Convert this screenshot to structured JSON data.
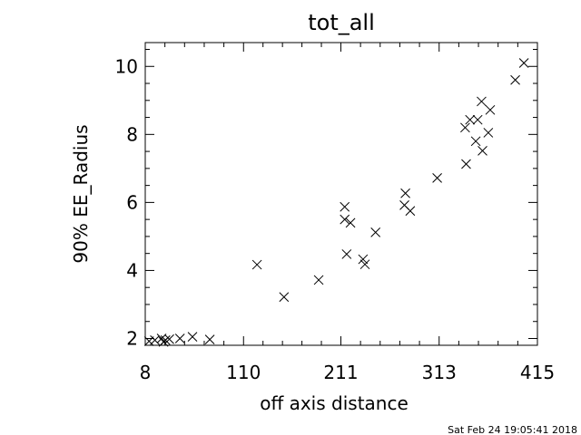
{
  "chart_data": {
    "type": "scatter",
    "title": "tot_all",
    "xlabel": "off axis distance",
    "ylabel": "90% EE_Radius",
    "xlim": [
      8,
      415
    ],
    "ylim": [
      1.8,
      10.7
    ],
    "xticks": [
      8,
      110,
      211,
      313,
      415
    ],
    "xtick_labels": [
      "8",
      "110",
      "211",
      "313",
      "415"
    ],
    "yticks": [
      2,
      4,
      6,
      8,
      10
    ],
    "ytick_labels": [
      "2",
      "4",
      "6",
      "8",
      "10"
    ],
    "marker": "x",
    "grid": false,
    "points": [
      {
        "x": 12,
        "y": 1.92
      },
      {
        "x": 18,
        "y": 1.95
      },
      {
        "x": 25,
        "y": 2.0
      },
      {
        "x": 27,
        "y": 1.9
      },
      {
        "x": 29,
        "y": 1.95
      },
      {
        "x": 33,
        "y": 1.98
      },
      {
        "x": 44,
        "y": 2.0
      },
      {
        "x": 57,
        "y": 2.05
      },
      {
        "x": 75,
        "y": 1.97
      },
      {
        "x": 124,
        "y": 4.17
      },
      {
        "x": 152,
        "y": 3.22
      },
      {
        "x": 188,
        "y": 3.72
      },
      {
        "x": 215,
        "y": 5.87
      },
      {
        "x": 215,
        "y": 5.5
      },
      {
        "x": 217,
        "y": 4.48
      },
      {
        "x": 221,
        "y": 5.4
      },
      {
        "x": 234,
        "y": 4.33
      },
      {
        "x": 236,
        "y": 4.18
      },
      {
        "x": 247,
        "y": 5.12
      },
      {
        "x": 278,
        "y": 6.27
      },
      {
        "x": 277,
        "y": 5.92
      },
      {
        "x": 283,
        "y": 5.75
      },
      {
        "x": 311,
        "y": 6.72
      },
      {
        "x": 340,
        "y": 8.2
      },
      {
        "x": 341,
        "y": 7.13
      },
      {
        "x": 345,
        "y": 8.43
      },
      {
        "x": 351,
        "y": 7.8
      },
      {
        "x": 353,
        "y": 8.43
      },
      {
        "x": 357,
        "y": 8.97
      },
      {
        "x": 358,
        "y": 7.52
      },
      {
        "x": 364,
        "y": 8.05
      },
      {
        "x": 366,
        "y": 8.72
      },
      {
        "x": 392,
        "y": 9.6
      },
      {
        "x": 401,
        "y": 10.1
      }
    ]
  },
  "footer": {
    "timestamp": "Sat Feb 24 19:05:41 2018"
  }
}
